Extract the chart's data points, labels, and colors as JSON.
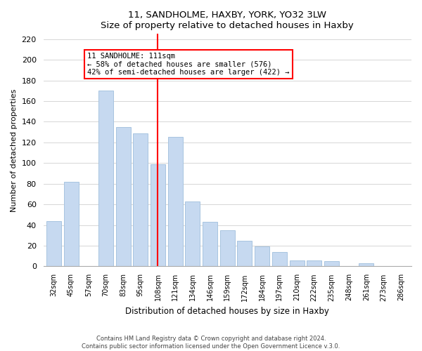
{
  "title": "11, SANDHOLME, HAXBY, YORK, YO32 3LW",
  "subtitle": "Size of property relative to detached houses in Haxby",
  "xlabel": "Distribution of detached houses by size in Haxby",
  "ylabel": "Number of detached properties",
  "footer_lines": [
    "Contains HM Land Registry data © Crown copyright and database right 2024.",
    "Contains public sector information licensed under the Open Government Licence v.3.0."
  ],
  "categories": [
    "32sqm",
    "45sqm",
    "57sqm",
    "70sqm",
    "83sqm",
    "95sqm",
    "108sqm",
    "121sqm",
    "134sqm",
    "146sqm",
    "159sqm",
    "172sqm",
    "184sqm",
    "197sqm",
    "210sqm",
    "222sqm",
    "235sqm",
    "248sqm",
    "261sqm",
    "273sqm",
    "286sqm"
  ],
  "values": [
    44,
    82,
    0,
    170,
    135,
    129,
    99,
    125,
    63,
    43,
    35,
    25,
    19,
    14,
    6,
    6,
    5,
    0,
    3,
    0,
    0
  ],
  "bar_color": "#c6d9f0",
  "bar_edge_color": "#a8c4e0",
  "vline_x_index": 6,
  "vline_color": "red",
  "annotation_title": "11 SANDHOLME: 111sqm",
  "annotation_line1": "← 58% of detached houses are smaller (576)",
  "annotation_line2": "42% of semi-detached houses are larger (422) →",
  "annotation_box_color": "white",
  "annotation_box_edge": "red",
  "ylim": [
    0,
    225
  ],
  "yticks": [
    0,
    20,
    40,
    60,
    80,
    100,
    120,
    140,
    160,
    180,
    200,
    220
  ]
}
